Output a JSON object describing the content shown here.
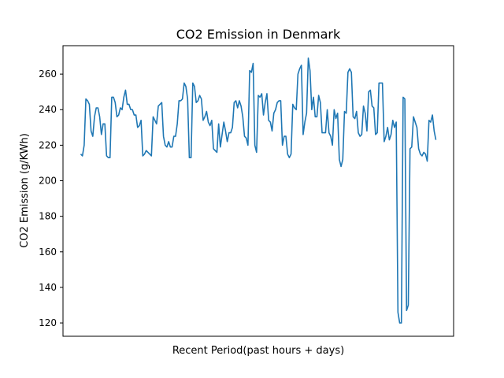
{
  "chart_data": {
    "type": "line",
    "title": "CO2 Emission in Denmark",
    "xlabel": "Recent Period(past hours + days)",
    "ylabel": "CO2 Emission (g/KWh)",
    "ylim": [
      112.5,
      276
    ],
    "yticks": [
      120,
      140,
      160,
      180,
      200,
      220,
      240,
      260
    ],
    "x_tick_labels": "none",
    "grid": false,
    "series": [
      {
        "color": "#1f77b4",
        "values": [
          215,
          214,
          220,
          246,
          245,
          243,
          228,
          225,
          236,
          241,
          241,
          236,
          226,
          232,
          232,
          214,
          213,
          213,
          247,
          247,
          244,
          236,
          237,
          241,
          240,
          247,
          251,
          243,
          243,
          240,
          240,
          237,
          237,
          230,
          231,
          234,
          214,
          215,
          217,
          216,
          215,
          214,
          236,
          234,
          232,
          242,
          243,
          244,
          225,
          220,
          219,
          222,
          219,
          219,
          225,
          225,
          232,
          245,
          245,
          246,
          255,
          253,
          246,
          213,
          213,
          255,
          253,
          244,
          245,
          248,
          246,
          234,
          236,
          239,
          233,
          231,
          234,
          218,
          217,
          216,
          232,
          219,
          226,
          233,
          228,
          222,
          227,
          227,
          230,
          244,
          245,
          241,
          245,
          242,
          236,
          225,
          224,
          220,
          262,
          261,
          266,
          220,
          216,
          248,
          247,
          249,
          237,
          244,
          249,
          234,
          233,
          228,
          238,
          240,
          244,
          245,
          245,
          220,
          225,
          225,
          215,
          213,
          215,
          243,
          241,
          240,
          260,
          263,
          265,
          226,
          233,
          238,
          269,
          262,
          240,
          247,
          236,
          236,
          248,
          244,
          227,
          227,
          227,
          240,
          227,
          225,
          220,
          240,
          235,
          238,
          212,
          208,
          212,
          239,
          238,
          261,
          263,
          261,
          236,
          235,
          239,
          227,
          225,
          226,
          242,
          238,
          228,
          250,
          251,
          242,
          241,
          226,
          227,
          255,
          255,
          255,
          222,
          225,
          230,
          223,
          226,
          234,
          230,
          233,
          126,
          120,
          120,
          247,
          246,
          127,
          130,
          218,
          219,
          236,
          233,
          230,
          218,
          215,
          214,
          216,
          215,
          211,
          234,
          233,
          237,
          228,
          223
        ]
      }
    ]
  }
}
